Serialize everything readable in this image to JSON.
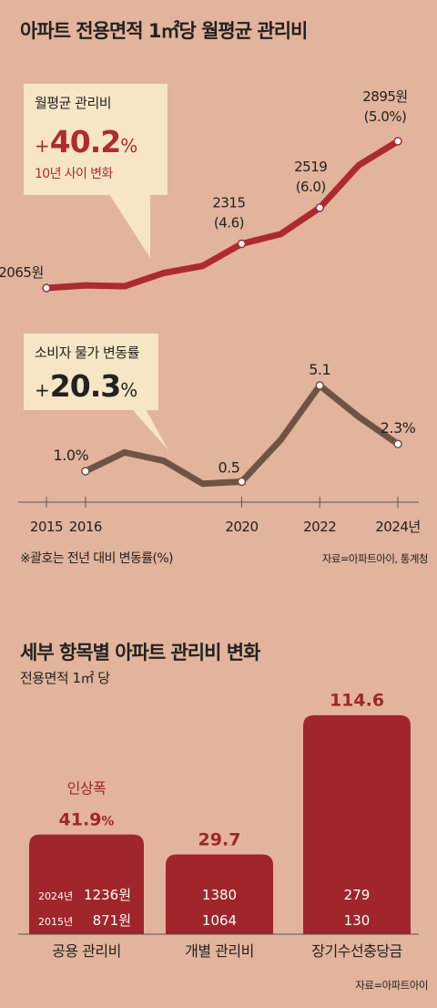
{
  "title": "아파트 전용면적 1㎡당 월평균 관리비",
  "callout_fee": {
    "label": "월평균 관리비",
    "sign": "+",
    "number": "40.2",
    "pct": "%",
    "sub": "10년 사이 변화"
  },
  "callout_cpi": {
    "label": "소비자 물가 변동률",
    "sign": "+",
    "number": "20.3",
    "pct": "%"
  },
  "note": "※괄호는 전년 대비 변동률(%)",
  "source_top": "자료=아파트아이, 통계청",
  "title2": "세부 항목별 아파트 관리비 변화",
  "subtitle2": "전용면적 1㎡ 당",
  "source_bottom": "자료=아파트아이",
  "colors": {
    "background": "#e2b49b",
    "fee_line": "#ad2a2e",
    "cpi_line": "#6e5445",
    "bar": "#a0262b",
    "callout": "#f6e6c6"
  },
  "chart_data": [
    {
      "type": "line",
      "x_ticks": [
        "2015",
        "2016",
        "2020",
        "2022",
        "2024년"
      ],
      "x": [
        2015,
        2016,
        2017,
        2018,
        2019,
        2020,
        2021,
        2022,
        2023,
        2024
      ],
      "series": [
        {
          "values": [
            2065,
            2080,
            2075,
            2150,
            2190,
            2315,
            2370,
            2519,
            2760,
            2895
          ],
          "labels": [
            {
              "index": 0,
              "lines": [
                "2065원"
              ]
            },
            {
              "index": 5,
              "lines": [
                "2315",
                "(4.6)"
              ]
            },
            {
              "index": 7,
              "lines": [
                "2519",
                "(6.0)"
              ]
            },
            {
              "index": 9,
              "lines": [
                "2895원",
                "(5.0%)"
              ]
            }
          ]
        },
        {
          "values": [
            null,
            1.0,
            1.9,
            1.5,
            0.4,
            0.5,
            2.5,
            5.1,
            3.6,
            2.3
          ],
          "labels": [
            {
              "index": 1,
              "lines": [
                "1.0%"
              ]
            },
            {
              "index": 5,
              "lines": [
                "0.5"
              ]
            },
            {
              "index": 7,
              "lines": [
                "5.1"
              ]
            },
            {
              "index": 9,
              "lines": [
                "2.3%"
              ]
            }
          ]
        }
      ]
    },
    {
      "type": "bar",
      "categories": [
        "공용 관리비",
        "개별 관리비",
        "장기수선충당금"
      ],
      "series": [
        {
          "name": "2024년",
          "values": [
            1236,
            1380,
            279
          ],
          "value_labels": [
            "1236원",
            "1380",
            "279"
          ]
        },
        {
          "name": "2015년",
          "values": [
            871,
            1064,
            130
          ],
          "value_labels": [
            "871원",
            "1064",
            "130"
          ]
        }
      ],
      "increase_pct": [
        41.9,
        29.7,
        114.6
      ],
      "increase_labels": [
        "41.9",
        "29.7",
        "114.6"
      ],
      "increase_suffix": [
        "%",
        "",
        ""
      ],
      "annotation": "인상폭"
    }
  ]
}
